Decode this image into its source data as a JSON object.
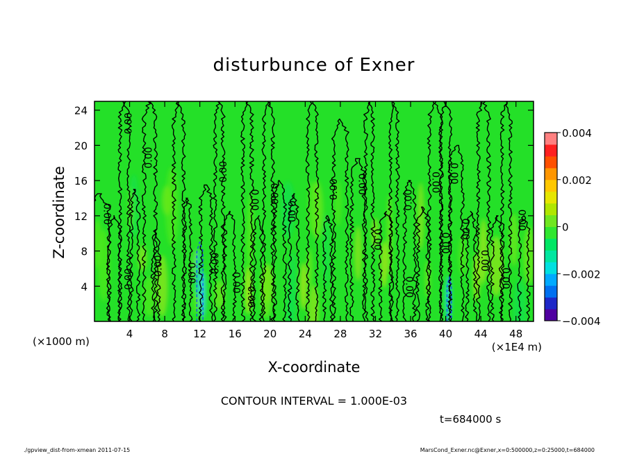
{
  "chart_data": {
    "type": "heatmap",
    "title": "disturbunce of Exner",
    "xlabel": "X-coordinate",
    "ylabel": "Z-coordinate",
    "xlim": [
      0,
      50
    ],
    "ylim": [
      0,
      25
    ],
    "x_ticks": [
      4,
      8,
      12,
      16,
      20,
      24,
      28,
      32,
      36,
      40,
      44,
      48
    ],
    "y_ticks": [
      4,
      8,
      12,
      16,
      20,
      24
    ],
    "x_unit_left": "(×1000 m)",
    "x_unit_right": "(×1E4 m)",
    "contour_interval_text": "CONTOUR INTERVAL = 1.000E-03",
    "time_text": "t=684000 s",
    "footer_left": "./gpview_dist-from-xmean  2011-07-15",
    "footer_right": "MarsCond_Exner.nc@Exner,x=0:500000,z=0:25000,t=684000",
    "colorbar": {
      "range": [
        -0.004,
        0.004
      ],
      "tick_labels": [
        "0.004",
        "0.002",
        "0",
        "−0.002",
        "−0.004"
      ],
      "tick_values": [
        0.004,
        0.002,
        0,
        -0.002,
        -0.004
      ],
      "colors": [
        "#5000a0",
        "#1e28c8",
        "#0070f0",
        "#00aaff",
        "#00e0e0",
        "#00e6a0",
        "#00e664",
        "#30e630",
        "#70e620",
        "#b0e600",
        "#e6e600",
        "#ffc800",
        "#ff9600",
        "#ff5000",
        "#ff2020",
        "#ff8080"
      ]
    },
    "contour_labels": [
      {
        "text": "0.00",
        "x": 1.4,
        "z": 12.2,
        "rot": 90
      },
      {
        "text": "0.00",
        "x": 3.9,
        "z": 22.5,
        "rot": -90
      },
      {
        "text": "0.00",
        "x": 3.9,
        "z": 4.8,
        "rot": -90
      },
      {
        "text": "0.00",
        "x": 6.2,
        "z": 18.6,
        "rot": -90
      },
      {
        "text": "0.00",
        "x": 7.3,
        "z": 6.3,
        "rot": -90
      },
      {
        "text": "0.00",
        "x": 11.0,
        "z": 5.5,
        "rot": 90
      },
      {
        "text": "0.00",
        "x": 13.8,
        "z": 6.6,
        "rot": -90
      },
      {
        "text": "0.00",
        "x": 14.7,
        "z": 17.0,
        "rot": -90
      },
      {
        "text": "0.00",
        "x": 16.1,
        "z": 4.4,
        "rot": 90
      },
      {
        "text": "0.00",
        "x": 17.8,
        "z": 2.8,
        "rot": 90
      },
      {
        "text": "0.00",
        "x": 18.2,
        "z": 13.8,
        "rot": 90
      },
      {
        "text": "0.00",
        "x": 20.4,
        "z": 14.5,
        "rot": 90
      },
      {
        "text": "0.00",
        "x": 22.4,
        "z": 12.5,
        "rot": 90
      },
      {
        "text": "0.00",
        "x": 27.3,
        "z": 15.0,
        "rot": -90
      },
      {
        "text": "0.00",
        "x": 30.4,
        "z": 15.6,
        "rot": 90
      },
      {
        "text": "0.00",
        "x": 32.2,
        "z": 9.3,
        "rot": 90
      },
      {
        "text": "0.00",
        "x": 35.8,
        "z": 3.9,
        "rot": 90
      },
      {
        "text": "0.00",
        "x": 35.8,
        "z": 13.8,
        "rot": -90
      },
      {
        "text": "0.00",
        "x": 38.8,
        "z": 15.8,
        "rot": 90
      },
      {
        "text": "0.00",
        "x": 39.9,
        "z": 8.9,
        "rot": 90
      },
      {
        "text": "0.00",
        "x": 40.9,
        "z": 16.8,
        "rot": 90
      },
      {
        "text": "0.00",
        "x": 42.2,
        "z": 10.5,
        "rot": 90
      },
      {
        "text": "0.00",
        "x": 44.4,
        "z": 6.9,
        "rot": 90
      },
      {
        "text": "0.00",
        "x": 46.8,
        "z": 4.9,
        "rot": 90
      },
      {
        "text": "0.00",
        "x": 48.6,
        "z": 11.5,
        "rot": 90
      }
    ]
  }
}
